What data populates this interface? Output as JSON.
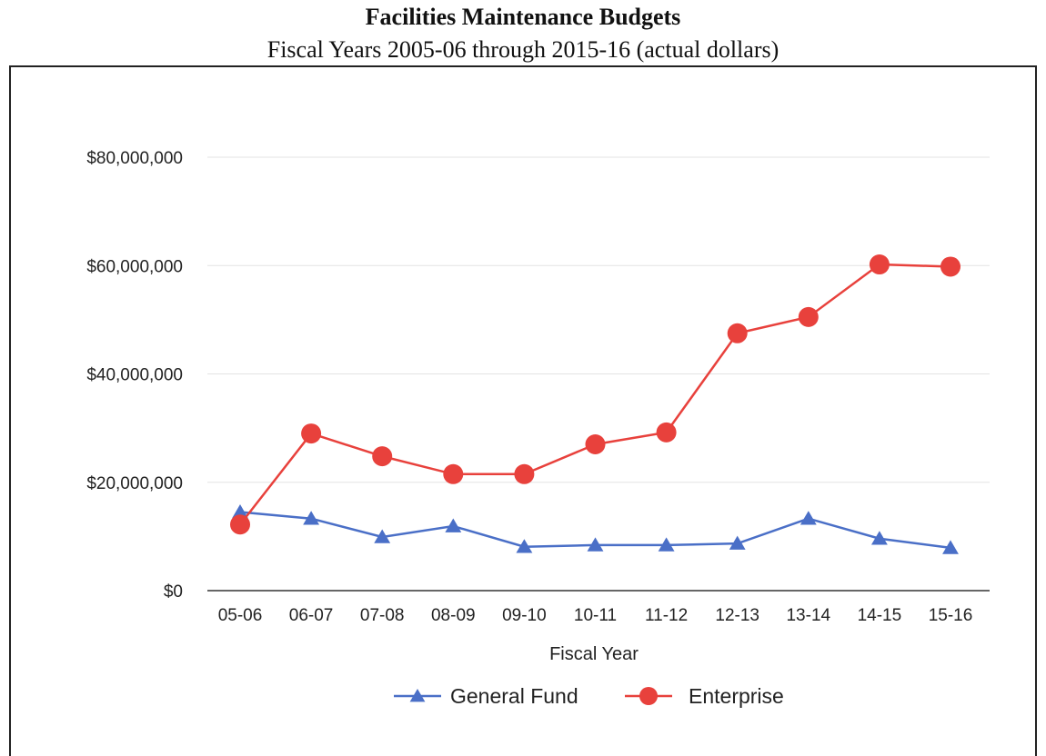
{
  "chart_data": {
    "type": "line",
    "title": "Facilities Maintenance Budgets",
    "subtitle": "Fiscal Years 2005-06 through 2015-16 (actual dollars)",
    "xlabel": "Fiscal Year",
    "ylabel": "",
    "categories": [
      "05-06",
      "06-07",
      "07-08",
      "08-09",
      "09-10",
      "10-11",
      "11-12",
      "12-13",
      "13-14",
      "14-15",
      "15-16"
    ],
    "ylim": [
      0,
      80000000
    ],
    "yticks": [
      0,
      20000000,
      40000000,
      60000000,
      80000000
    ],
    "ytick_labels": [
      "$0",
      "$20,000,000",
      "$40,000,000",
      "$60,000,000",
      "$80,000,000"
    ],
    "grid": true,
    "legend_position": "bottom",
    "series": [
      {
        "name": "General Fund",
        "color": "#4a6fc7",
        "marker": "triangle",
        "values": [
          14500000,
          13300000,
          9900000,
          11900000,
          8100000,
          8400000,
          8400000,
          8700000,
          13300000,
          9600000,
          7900000
        ]
      },
      {
        "name": "Enterprise",
        "color": "#e8413c",
        "marker": "circle",
        "values": [
          12200000,
          29000000,
          24800000,
          21500000,
          21500000,
          27000000,
          29200000,
          47500000,
          50500000,
          60200000,
          59800000
        ]
      }
    ]
  }
}
